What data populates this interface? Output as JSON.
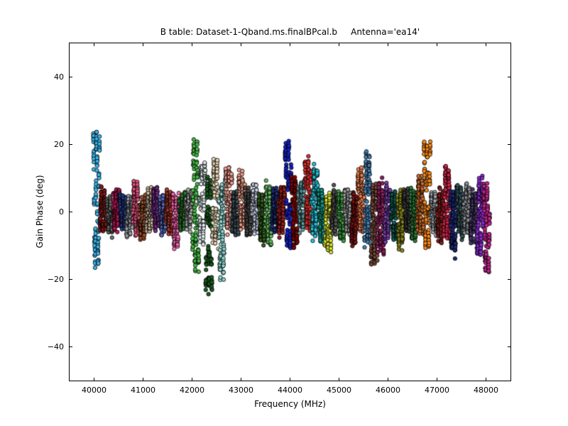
{
  "chart_data": {
    "type": "scatter",
    "title": "B table: Dataset-1-Qband.ms.finalBPcal.b     Antenna='ea14'",
    "xlabel": "Frequency (MHz)",
    "ylabel": "Gain Phase (deg)",
    "xlim": [
      39500,
      48500
    ],
    "ylim": [
      -50,
      50
    ],
    "xticks": [
      40000,
      41000,
      42000,
      43000,
      44000,
      45000,
      46000,
      47000,
      48000
    ],
    "xtick_labels": [
      "40000",
      "41000",
      "42000",
      "43000",
      "44000",
      "45000",
      "46000",
      "47000",
      "48000"
    ],
    "yticks": [
      -40,
      -20,
      0,
      20,
      40
    ],
    "ytick_labels": [
      "−40",
      "−20",
      "0",
      "20",
      "40"
    ],
    "grid": false,
    "legend": null,
    "marker": {
      "shape": "circle",
      "radius_px": 2.7,
      "edge_color": "#000000"
    },
    "cluster_key": {
      "f": "center_frequency_mhz",
      "m": "mean_phase_deg",
      "a": "envelope_amplitude_deg",
      "s": "scatter_sigma_deg",
      "c": "fill_color"
    },
    "cluster_width_mhz": 128,
    "channels_per_cluster": 16,
    "points_per_channel": 7,
    "clusters": [
      {
        "f": 40048,
        "m": 4,
        "a": 19,
        "s": 3,
        "c": "#3bb8f0"
      },
      {
        "f": 40183,
        "m": 0,
        "a": 5,
        "s": 2.5,
        "c": "#8b1a1a"
      },
      {
        "f": 40318,
        "m": -1,
        "a": 4,
        "s": 2.5,
        "c": "#6e6e6e"
      },
      {
        "f": 40453,
        "m": 1,
        "a": 5,
        "s": 2.5,
        "c": "#c2185b"
      },
      {
        "f": 40588,
        "m": 0,
        "a": 4,
        "s": 2.2,
        "c": "#2a3f8f"
      },
      {
        "f": 40723,
        "m": -1,
        "a": 4,
        "s": 2.4,
        "c": "#9aa0a6"
      },
      {
        "f": 40858,
        "m": 1,
        "a": 6,
        "s": 2.5,
        "c": "#e75480"
      },
      {
        "f": 40993,
        "m": -2,
        "a": 5,
        "s": 2.5,
        "c": "#a0522d"
      },
      {
        "f": 41128,
        "m": 0,
        "a": 5,
        "s": 2.5,
        "c": "#c9b79c"
      },
      {
        "f": 41263,
        "m": 1,
        "a": 5,
        "s": 2.5,
        "c": "#7b2d8b"
      },
      {
        "f": 41398,
        "m": -1,
        "a": 4,
        "s": 2.4,
        "c": "#5c6bc0"
      },
      {
        "f": 41533,
        "m": 0,
        "a": 5,
        "s": 2.5,
        "c": "#b03a2e"
      },
      {
        "f": 41668,
        "m": -3,
        "a": 7,
        "s": 2.6,
        "c": "#ff69b4"
      },
      {
        "f": 41803,
        "m": 0,
        "a": 4,
        "s": 2.4,
        "c": "#2e7d32"
      },
      {
        "f": 41938,
        "m": 1,
        "a": 4,
        "s": 2.4,
        "c": "#a9a9a9"
      },
      {
        "f": 42073,
        "m": 2,
        "a": 18,
        "s": 3,
        "c": "#44bb44"
      },
      {
        "f": 42208,
        "m": 3,
        "a": 11,
        "s": 3,
        "c": "#dce9ec"
      },
      {
        "f": 42343,
        "m": -7,
        "a": 16,
        "s": 3,
        "c": "#1b5e20"
      },
      {
        "f": 42478,
        "m": 3,
        "a": 11,
        "s": 3,
        "c": "#e7d8b5"
      },
      {
        "f": 42613,
        "m": -5,
        "a": 13,
        "s": 3,
        "c": "#8fd5d0"
      },
      {
        "f": 42748,
        "m": 4,
        "a": 8,
        "s": 2.8,
        "c": "#f2a093"
      },
      {
        "f": 42883,
        "m": 0,
        "a": 5,
        "s": 2.5,
        "c": "#3f5159"
      },
      {
        "f": 43018,
        "m": 3,
        "a": 7,
        "s": 2.6,
        "c": "#ef9f8a"
      },
      {
        "f": 43153,
        "m": 0,
        "a": 5,
        "s": 2.5,
        "c": "#4a4a4a"
      },
      {
        "f": 43288,
        "m": 1,
        "a": 6,
        "s": 2.5,
        "c": "#ccd2ec"
      },
      {
        "f": 43423,
        "m": -2,
        "a": 6,
        "s": 2.5,
        "c": "#355e1e"
      },
      {
        "f": 43558,
        "m": -1,
        "a": 7,
        "s": 2.8,
        "c": "#63b75f"
      },
      {
        "f": 43693,
        "m": 0,
        "a": 5,
        "s": 2.5,
        "c": "#202f7a"
      },
      {
        "f": 43828,
        "m": 1,
        "a": 6,
        "s": 2.5,
        "c": "#9c1f1f"
      },
      {
        "f": 43963,
        "m": 5,
        "a": 15,
        "s": 3,
        "c": "#1423cc"
      },
      {
        "f": 44098,
        "m": 0,
        "a": 9,
        "s": 2.8,
        "c": "#8b0000"
      },
      {
        "f": 44233,
        "m": 2,
        "a": 6,
        "s": 2.5,
        "c": "#5f9ea0"
      },
      {
        "f": 44368,
        "m": 5,
        "a": 9,
        "s": 2.8,
        "c": "#e03131"
      },
      {
        "f": 44503,
        "m": 3,
        "a": 9,
        "s": 2.8,
        "c": "#27c3d8"
      },
      {
        "f": 44638,
        "m": -1,
        "a": 6,
        "s": 2.5,
        "c": "#119988"
      },
      {
        "f": 44773,
        "m": -3,
        "a": 7,
        "s": 2.6,
        "c": "#d8e034"
      },
      {
        "f": 44908,
        "m": 0,
        "a": 5,
        "s": 2.5,
        "c": "#575757"
      },
      {
        "f": 45043,
        "m": -1,
        "a": 6,
        "s": 2.5,
        "c": "#3f9e44"
      },
      {
        "f": 45178,
        "m": 0,
        "a": 5,
        "s": 2.4,
        "c": "#9e9e9e"
      },
      {
        "f": 45313,
        "m": -2,
        "a": 6,
        "s": 2.5,
        "c": "#7c1414"
      },
      {
        "f": 45448,
        "m": 3,
        "a": 8,
        "s": 2.8,
        "c": "#f07f4f"
      },
      {
        "f": 45583,
        "m": 4,
        "a": 12,
        "s": 3,
        "c": "#4682b4"
      },
      {
        "f": 45718,
        "m": -4,
        "a": 11,
        "s": 3,
        "c": "#7a4b3a"
      },
      {
        "f": 45853,
        "m": -2,
        "a": 9,
        "s": 2.8,
        "c": "#8e1e5f"
      },
      {
        "f": 45988,
        "m": 0,
        "a": 7,
        "s": 2.6,
        "c": "#7c3fae"
      },
      {
        "f": 46123,
        "m": -1,
        "a": 6,
        "s": 2.5,
        "c": "#0f5f56"
      },
      {
        "f": 46258,
        "m": -2,
        "a": 7,
        "s": 2.6,
        "c": "#8a8a1e"
      },
      {
        "f": 46393,
        "m": 0,
        "a": 5,
        "s": 2.5,
        "c": "#3d3d3d"
      },
      {
        "f": 46528,
        "m": -1,
        "a": 6,
        "s": 2.5,
        "c": "#2f7d3a"
      },
      {
        "f": 46663,
        "m": 2,
        "a": 7,
        "s": 2.6,
        "c": "#cc6b2c"
      },
      {
        "f": 46798,
        "m": 5,
        "a": 15,
        "s": 3,
        "c": "#ff8c1a"
      },
      {
        "f": 46933,
        "m": 0,
        "a": 5,
        "s": 2.4,
        "c": "#a3a8ad"
      },
      {
        "f": 47068,
        "m": -1,
        "a": 6,
        "s": 2.5,
        "c": "#8b2020"
      },
      {
        "f": 47203,
        "m": 3,
        "a": 9,
        "s": 2.8,
        "c": "#d2264b"
      },
      {
        "f": 47338,
        "m": -3,
        "a": 8,
        "s": 2.8,
        "c": "#1e2a78"
      },
      {
        "f": 47473,
        "m": 0,
        "a": 6,
        "s": 2.5,
        "c": "#37575c"
      },
      {
        "f": 47608,
        "m": 1,
        "a": 6,
        "s": 2.5,
        "c": "#8f949a"
      },
      {
        "f": 47743,
        "m": -1,
        "a": 6,
        "s": 2.5,
        "c": "#4b3a6b"
      },
      {
        "f": 47878,
        "m": -2,
        "a": 10,
        "s": 3,
        "c": "#8f2bd4"
      },
      {
        "f": 48013,
        "m": -5,
        "a": 12,
        "s": 3,
        "c": "#c2278f"
      }
    ]
  }
}
